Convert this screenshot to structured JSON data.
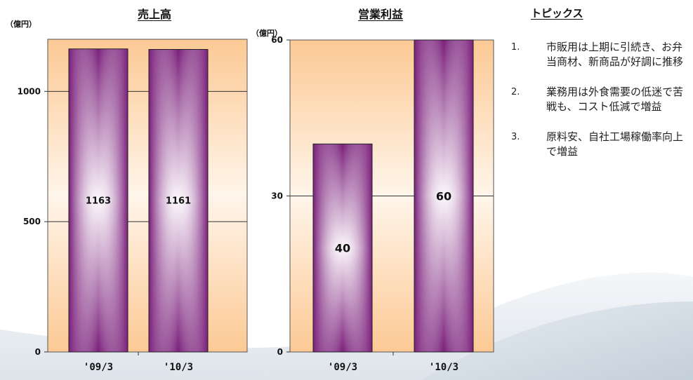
{
  "chart_data": [
    {
      "type": "bar",
      "title": "売上高",
      "unit": "（億円）",
      "categories": [
        "'09/3",
        "'10/3"
      ],
      "values": [
        1163,
        1161
      ],
      "data_labels": [
        "1163",
        "1161"
      ],
      "ylim": [
        0,
        1200
      ],
      "yticks": [
        0,
        500,
        1000
      ],
      "grid": true,
      "legend": "none",
      "colors": {
        "plot_bg": "#fcc994",
        "bar": "#7a1f7a",
        "bar_highlight": "#ffffff"
      }
    },
    {
      "type": "bar",
      "title": "営業利益",
      "unit": "（億円）",
      "categories": [
        "'09/3",
        "'10/3"
      ],
      "values": [
        40,
        60
      ],
      "data_labels": [
        "40",
        "60"
      ],
      "ylim": [
        0,
        60
      ],
      "yticks": [
        0,
        30,
        60
      ],
      "grid": true,
      "legend": "none",
      "colors": {
        "plot_bg": "#fcc994",
        "bar": "#7a1f7a",
        "bar_highlight": "#ffffff"
      }
    }
  ],
  "topics": {
    "title": "トピックス",
    "items": [
      {
        "num": "1.",
        "text": "市販用は上期に引続き、お弁当商材、新商品が好調に推移"
      },
      {
        "num": "2.",
        "text": "業務用は外食需要の低迷で苦戦も、コスト低減で増益"
      },
      {
        "num": "3.",
        "text": "原料安、自社工場稼働率向上で増益"
      }
    ]
  }
}
